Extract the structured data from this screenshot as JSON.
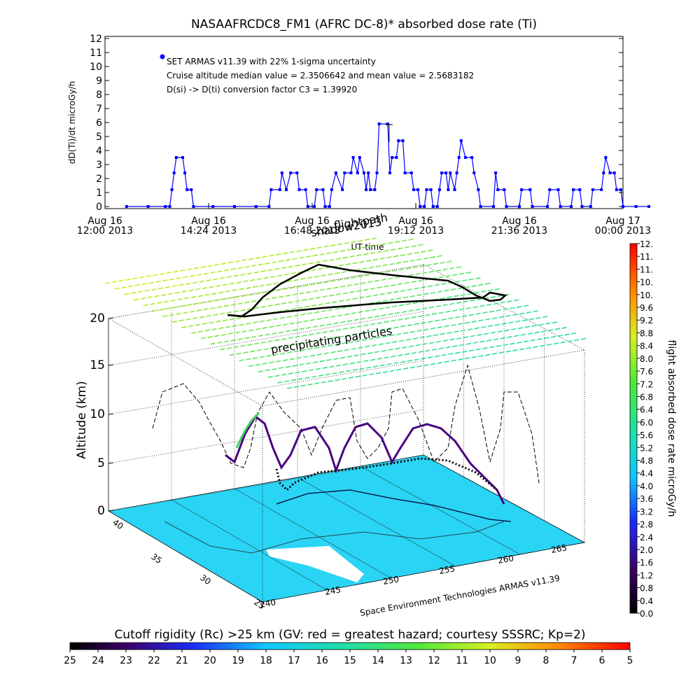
{
  "chart_data": [
    {
      "type": "line",
      "title": "NASAAFRCDC8_FM1 (AFRC DC-8)* absorbed dose rate (Ti)",
      "ylabel": "dD(Ti)/dt microGy/h",
      "xlabel": "UT time",
      "ylim": [
        0,
        12
      ],
      "y_ticks": [
        "0",
        "1",
        "2",
        "3",
        "4",
        "5",
        "6",
        "7",
        "8",
        "9",
        "10",
        "11",
        "12"
      ],
      "x_ticks": [
        {
          "line1": "Aug 16",
          "line2": "12:00 2013"
        },
        {
          "line1": "Aug 16",
          "line2": "14:24 2013"
        },
        {
          "line1": "Aug 16",
          "line2": "16:48 2013"
        },
        {
          "line1": "Aug 16",
          "line2": "19:12 2013"
        },
        {
          "line1": "Aug 16",
          "line2": "21:36 2013"
        },
        {
          "line1": "Aug 17",
          "line2": "00:00 2013"
        }
      ],
      "x_range_hours": [
        12.0,
        24.0
      ],
      "legend": [
        "SET ARMAS v11.39 with 22% 1-sigma uncertainty",
        "Cruise altitude median value = 2.3506642 and mean value = 2.5683182",
        "D(si) -> D(ti) conversion factor C3 = 1.39920"
      ],
      "series_color": "#0000ff",
      "series": [
        {
          "points": [
            [
              12.5,
              0
            ],
            [
              13.0,
              0
            ],
            [
              13.4,
              0
            ],
            [
              13.5,
              0
            ],
            [
              13.55,
              1.2
            ],
            [
              13.6,
              2.4
            ],
            [
              13.65,
              3.5
            ],
            [
              13.8,
              3.5
            ],
            [
              13.85,
              2.4
            ],
            [
              13.9,
              1.2
            ],
            [
              14.0,
              1.2
            ],
            [
              14.05,
              0
            ],
            [
              14.5,
              0
            ],
            [
              15.0,
              0
            ],
            [
              15.5,
              0
            ],
            [
              15.8,
              0
            ],
            [
              15.85,
              1.2
            ],
            [
              16.05,
              1.2
            ],
            [
              16.1,
              2.4
            ],
            [
              16.2,
              1.2
            ],
            [
              16.3,
              2.4
            ],
            [
              16.45,
              2.4
            ],
            [
              16.5,
              1.2
            ],
            [
              16.65,
              1.2
            ],
            [
              16.7,
              0
            ],
            [
              16.85,
              0
            ],
            [
              16.9,
              1.2
            ],
            [
              17.05,
              1.2
            ],
            [
              17.1,
              0
            ],
            [
              17.2,
              0
            ],
            [
              17.25,
              1.2
            ],
            [
              17.35,
              2.4
            ],
            [
              17.5,
              1.2
            ],
            [
              17.55,
              2.4
            ],
            [
              17.7,
              2.4
            ],
            [
              17.75,
              3.5
            ],
            [
              17.85,
              2.4
            ],
            [
              17.9,
              3.5
            ],
            [
              18.0,
              2.4
            ],
            [
              18.05,
              1.2
            ],
            [
              18.1,
              2.4
            ],
            [
              18.15,
              1.2
            ],
            [
              18.25,
              1.2
            ],
            [
              18.3,
              2.4
            ],
            [
              18.35,
              5.9
            ],
            [
              18.55,
              5.9
            ],
            [
              18.6,
              2.4
            ],
            [
              18.65,
              3.5
            ],
            [
              18.75,
              3.5
            ],
            [
              18.8,
              4.7
            ],
            [
              18.9,
              4.7
            ],
            [
              18.95,
              2.4
            ],
            [
              19.1,
              2.4
            ],
            [
              19.15,
              1.2
            ],
            [
              19.25,
              1.2
            ],
            [
              19.3,
              0
            ],
            [
              19.4,
              0
            ],
            [
              19.45,
              1.2
            ],
            [
              19.55,
              1.2
            ],
            [
              19.6,
              0
            ],
            [
              19.7,
              0
            ],
            [
              19.75,
              1.2
            ],
            [
              19.8,
              2.4
            ],
            [
              19.9,
              2.4
            ],
            [
              19.95,
              1.2
            ],
            [
              20.0,
              2.4
            ],
            [
              20.1,
              1.2
            ],
            [
              20.15,
              2.4
            ],
            [
              20.2,
              3.5
            ],
            [
              20.25,
              4.7
            ],
            [
              20.35,
              3.5
            ],
            [
              20.5,
              3.5
            ],
            [
              20.55,
              2.4
            ],
            [
              20.65,
              1.2
            ],
            [
              20.7,
              0
            ],
            [
              21.0,
              0
            ],
            [
              21.05,
              2.4
            ],
            [
              21.1,
              1.2
            ],
            [
              21.25,
              1.2
            ],
            [
              21.3,
              0
            ],
            [
              21.6,
              0
            ],
            [
              21.65,
              1.2
            ],
            [
              21.85,
              1.2
            ],
            [
              21.9,
              0
            ],
            [
              22.25,
              0
            ],
            [
              22.3,
              1.2
            ],
            [
              22.5,
              1.2
            ],
            [
              22.55,
              0
            ],
            [
              22.8,
              0
            ],
            [
              22.85,
              1.2
            ],
            [
              23.0,
              1.2
            ],
            [
              23.05,
              0
            ],
            [
              23.25,
              0
            ],
            [
              23.3,
              1.2
            ],
            [
              23.5,
              1.2
            ],
            [
              23.55,
              2.4
            ],
            [
              23.6,
              3.5
            ],
            [
              23.7,
              2.4
            ],
            [
              23.8,
              2.4
            ],
            [
              23.85,
              1.2
            ],
            [
              23.95,
              1.2
            ],
            [
              24.0,
              0
            ],
            [
              24.3,
              0
            ],
            [
              24.6,
              0
            ]
          ]
        }
      ]
    },
    {
      "type": "heatmap",
      "description_labels": {
        "shadow": "shadow2013",
        "flightpath": "flightpath",
        "precipitating": "precipitating particles",
        "credit": "Space Environment Technologies ARMAS v11.39"
      },
      "zlabel": "Altitude (km)",
      "z_ticks": [
        "0",
        "5",
        "10",
        "15",
        "20"
      ],
      "lat_ticks": [
        "40",
        "35",
        "30",
        "25"
      ],
      "lon_ticks": [
        "240",
        "245",
        "250",
        "255",
        "260",
        "265"
      ],
      "colorbar_right": {
        "label": "flight absorbed dose rate microGy/h",
        "ticks": [
          "0.0",
          "0.4",
          "0.8",
          "1.2",
          "1.6",
          "2.0",
          "2.4",
          "2.8",
          "3.2",
          "3.6",
          "4.0",
          "4.4",
          "4.8",
          "5.2",
          "5.6",
          "6.0",
          "6.4",
          "6.8",
          "7.2",
          "7.6",
          "8.0",
          "8.4",
          "8.8",
          "9.2",
          "9.6",
          "10.",
          "10.",
          "11.",
          "11.",
          "12."
        ]
      },
      "colorbar_bottom": {
        "label": "Cutoff rigidity (Rc) >25 km (GV: red = greatest hazard; courtesy SSSRC; Kp=2)",
        "ticks": [
          "25",
          "24",
          "23",
          "22",
          "21",
          "20",
          "19",
          "18",
          "17",
          "16",
          "15",
          "14",
          "13",
          "12",
          "11",
          "10",
          "9",
          "8",
          "7",
          "6",
          "5"
        ]
      }
    }
  ]
}
